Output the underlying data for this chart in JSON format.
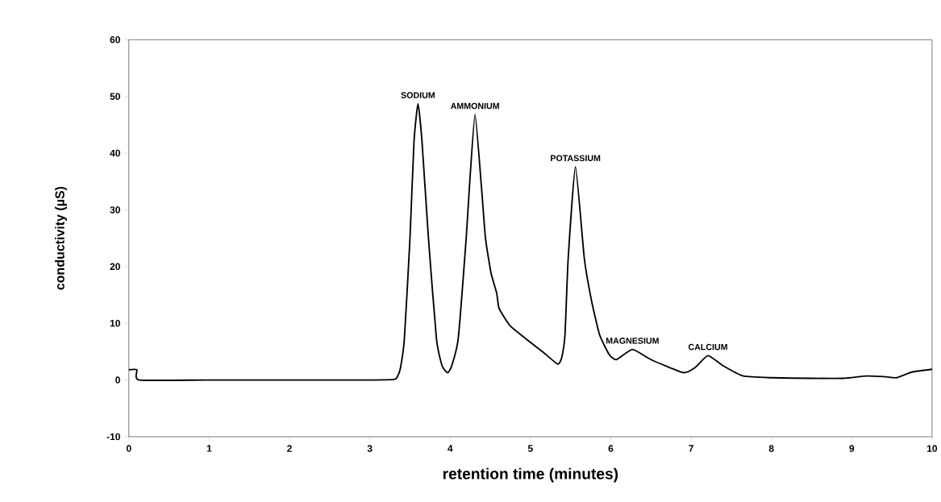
{
  "chart_data": {
    "type": "line",
    "xlabel": "retention time (minutes)",
    "ylabel": "conductivity (µS)",
    "xlim": [
      0,
      10
    ],
    "ylim": [
      -10,
      60
    ],
    "xticks": [
      0,
      1,
      2,
      3,
      4,
      5,
      6,
      7,
      8,
      9,
      10
    ],
    "yticks": [
      -10,
      0,
      10,
      20,
      30,
      40,
      50,
      60
    ],
    "grid": false,
    "marker": "none",
    "line_style": "solid",
    "series": [
      {
        "color": "#000000",
        "x": [
          0,
          0.1,
          0.13,
          1,
          2,
          3,
          3.3,
          3.34,
          3.38,
          3.43,
          3.5,
          3.55,
          3.6,
          3.65,
          3.73,
          3.83,
          3.9,
          3.97,
          4.02,
          4.1,
          4.2,
          4.24,
          4.31,
          4.39,
          4.44,
          4.51,
          4.58,
          4.61,
          4.75,
          4.95,
          5.15,
          5.34,
          5.39,
          5.43,
          5.47,
          5.56,
          5.67,
          5.76,
          5.86,
          5.98,
          6.07,
          6.27,
          6.5,
          6.9,
          7.05,
          7.21,
          7.4,
          7.65,
          8,
          8.5,
          8.9,
          9.18,
          9.4,
          9.56,
          9.75,
          10
        ],
        "values": [
          1.8,
          1.8,
          0,
          0,
          0,
          0,
          0.1,
          0.5,
          2,
          7.2,
          25,
          42,
          48.7,
          42,
          25,
          7.2,
          2.5,
          1.3,
          2.5,
          7.2,
          25,
          34,
          46.8,
          34,
          25,
          18.8,
          15.3,
          12.6,
          9.5,
          7.2,
          5,
          2.8,
          4,
          8,
          21.5,
          37.6,
          21.5,
          14,
          8,
          4.5,
          3.6,
          5.4,
          3.6,
          1.3,
          2.2,
          4.3,
          2.5,
          0.7,
          0.4,
          0.3,
          0.3,
          0.7,
          0.6,
          0.4,
          1.4,
          1.9
        ]
      }
    ],
    "annotations": [
      {
        "text": "SODIUM",
        "x": 3.6,
        "y": 48.7
      },
      {
        "text": "AMMONIUM",
        "x": 4.31,
        "y": 46.8
      },
      {
        "text": "POTASSIUM",
        "x": 5.56,
        "y": 37.6
      },
      {
        "text": "MAGNESIUM",
        "x": 6.27,
        "y": 5.4
      },
      {
        "text": "CALCIUM",
        "x": 7.21,
        "y": 4.3
      }
    ]
  }
}
